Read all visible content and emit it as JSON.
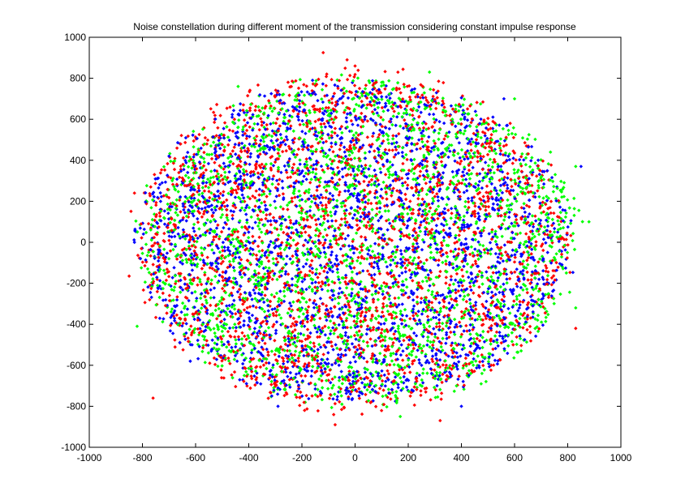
{
  "chart_data": {
    "type": "scatter",
    "title": "Noise constellation during different moment of the transmission considering constant impulse response",
    "xlabel": "",
    "ylabel": "",
    "xlim": [
      -1000,
      1000
    ],
    "ylim": [
      -1000,
      1000
    ],
    "x_ticks": [
      -1000,
      -800,
      -600,
      -400,
      -200,
      0,
      200,
      400,
      600,
      800,
      1000
    ],
    "y_ticks": [
      -1000,
      -800,
      -600,
      -400,
      -200,
      0,
      200,
      400,
      600,
      800,
      1000
    ],
    "grid": false,
    "legend": "none",
    "marker": "diamond",
    "series": [
      {
        "color": "#ff0000",
        "points_per_series": 2400,
        "x_range": [
          -850,
          850
        ],
        "y_range": [
          -900,
          930
        ],
        "sample_points": [
          [
            -120,
            925
          ],
          [
            -30,
            890
          ],
          [
            -75,
            -890
          ],
          [
            320,
            -870
          ],
          [
            -760,
            -760
          ],
          [
            830,
            -420
          ],
          [
            -850,
            -165
          ],
          [
            -830,
            240
          ],
          [
            -190,
            -820
          ],
          [
            0,
            860
          ]
        ]
      },
      {
        "color": "#00ff00",
        "points_per_series": 2400,
        "x_range": [
          -830,
          880
        ],
        "y_range": [
          -850,
          830
        ],
        "sample_points": [
          [
            880,
            100
          ],
          [
            830,
            -320
          ],
          [
            830,
            370
          ],
          [
            -820,
            -410
          ],
          [
            170,
            -850
          ],
          [
            280,
            830
          ],
          [
            -440,
            760
          ],
          [
            100,
            780
          ],
          [
            -780,
            -130
          ],
          [
            600,
            700
          ]
        ]
      },
      {
        "color": "#0000ff",
        "points_per_series": 2400,
        "x_range": [
          -830,
          850
        ],
        "y_range": [
          -800,
          800
        ],
        "sample_points": [
          [
            -830,
            0
          ],
          [
            850,
            370
          ],
          [
            -160,
            790
          ],
          [
            400,
            -800
          ],
          [
            -290,
            -800
          ],
          [
            -620,
            -580
          ],
          [
            560,
            700
          ],
          [
            770,
            -40
          ],
          [
            -700,
            420
          ],
          [
            100,
            710
          ]
        ]
      }
    ]
  }
}
